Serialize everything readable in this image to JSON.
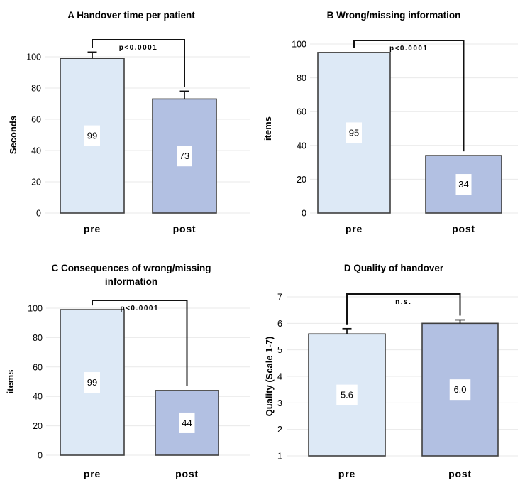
{
  "style": {
    "pre_fill": "#dde9f6",
    "post_fill": "#b2c0e2",
    "bar_border": "#3f3f3f",
    "grid_color": "#e9e9e9",
    "line_color": "#111111",
    "label_box": "#ffffff",
    "text_color": "#000000"
  },
  "chart_data": [
    {
      "id": "A",
      "type": "bar",
      "title": "A Handover time per patient",
      "ylabel": "Seconds",
      "categories": [
        "pre",
        "post"
      ],
      "values": [
        99,
        73
      ],
      "value_labels": [
        "99",
        "73"
      ],
      "errors": [
        4,
        5
      ],
      "ylim": [
        0,
        100
      ],
      "yticks": [
        0,
        20,
        40,
        60,
        80,
        100
      ],
      "significance": "p<0.0001",
      "grid": true,
      "legend": "none"
    },
    {
      "id": "B",
      "type": "bar",
      "title": "B Wrong/missing information",
      "ylabel": "items",
      "categories": [
        "pre",
        "post"
      ],
      "values": [
        95,
        34
      ],
      "value_labels": [
        "95",
        "34"
      ],
      "errors": [
        0,
        0
      ],
      "ylim": [
        0,
        100
      ],
      "yticks": [
        0,
        20,
        40,
        60,
        80,
        100
      ],
      "significance": "p<0.0001",
      "grid": true,
      "legend": "none"
    },
    {
      "id": "C",
      "type": "bar",
      "title": "C Consequences of wrong/missing information",
      "ylabel": "items",
      "categories": [
        "pre",
        "post"
      ],
      "values": [
        99,
        44
      ],
      "value_labels": [
        "99",
        "44"
      ],
      "errors": [
        0,
        0
      ],
      "ylim": [
        0,
        100
      ],
      "yticks": [
        0,
        20,
        40,
        60,
        80,
        100
      ],
      "significance": "p<0.0001",
      "grid": true,
      "legend": "none"
    },
    {
      "id": "D",
      "type": "bar",
      "title": "D Quality of handover",
      "ylabel": "Quality (Scale 1-7)",
      "categories": [
        "pre",
        "post"
      ],
      "values": [
        5.6,
        6.0
      ],
      "value_labels": [
        "5.6",
        "6.0"
      ],
      "errors": [
        0.2,
        0.13
      ],
      "ylim": [
        1,
        7
      ],
      "yticks": [
        1,
        2,
        3,
        4,
        5,
        6,
        7
      ],
      "significance": "n.s.",
      "grid": true,
      "legend": "none"
    }
  ]
}
